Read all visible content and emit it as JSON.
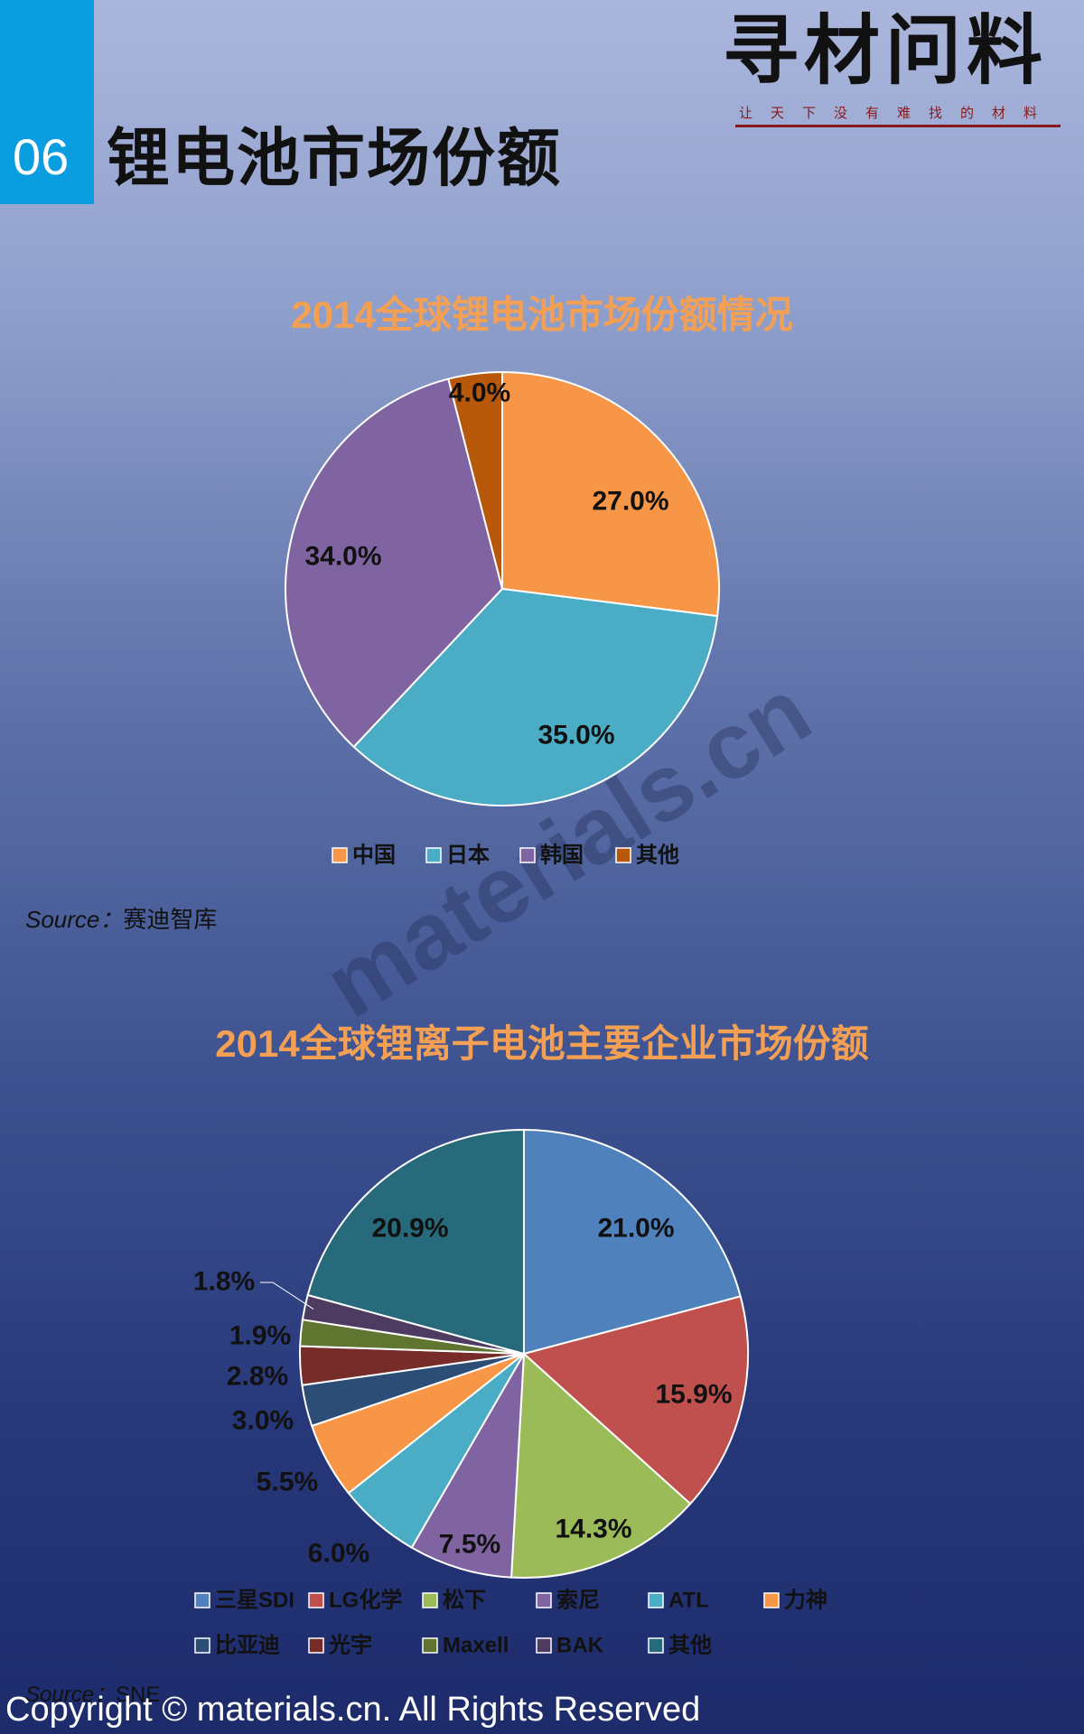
{
  "section_number": "06",
  "page_title": "锂电池市场份额",
  "logo": {
    "main_text": "寻材问料",
    "tagline": "让天下没有难找的材料"
  },
  "watermark": "materials.cn",
  "chart_data": [
    {
      "type": "pie",
      "title": "2014全球锂电池市场份额情况",
      "categories": [
        "中国",
        "日本",
        "韩国",
        "其他"
      ],
      "values": [
        27.0,
        35.0,
        34.0,
        4.0
      ],
      "labels": [
        "27.0%",
        "35.0%",
        "34.0%",
        "4.0%"
      ],
      "colors": [
        "#f79646",
        "#4bacc6",
        "#8064a2",
        "#b8580a"
      ],
      "legend_position": "bottom",
      "source_label": "Source：",
      "source": "赛迪智库"
    },
    {
      "type": "pie",
      "title": "2014全球锂离子电池主要企业市场份额",
      "categories": [
        "三星SDI",
        "LG化学",
        "松下",
        "索尼",
        "ATL",
        "力神",
        "比亚迪",
        "光宇",
        "Maxell",
        "BAK",
        "其他"
      ],
      "values": [
        21.0,
        15.9,
        14.3,
        7.5,
        6.0,
        5.5,
        3.0,
        2.8,
        1.9,
        1.8,
        20.9
      ],
      "labels": [
        "21.0%",
        "15.9%",
        "14.3%",
        "7.5%",
        "6.0%",
        "5.5%",
        "3.0%",
        "2.8%",
        "1.9%",
        "1.8%",
        "20.9%"
      ],
      "colors": [
        "#4f81bd",
        "#c0504d",
        "#9bbb59",
        "#8064a2",
        "#4bacc6",
        "#f79646",
        "#2c4d75",
        "#772c2a",
        "#5f7530",
        "#4d3b62",
        "#276a7c"
      ],
      "legend_position": "bottom",
      "source_label": "Source：",
      "source": "SNE"
    }
  ],
  "copyright": "Copyright © materials.cn. All Rights Reserved"
}
